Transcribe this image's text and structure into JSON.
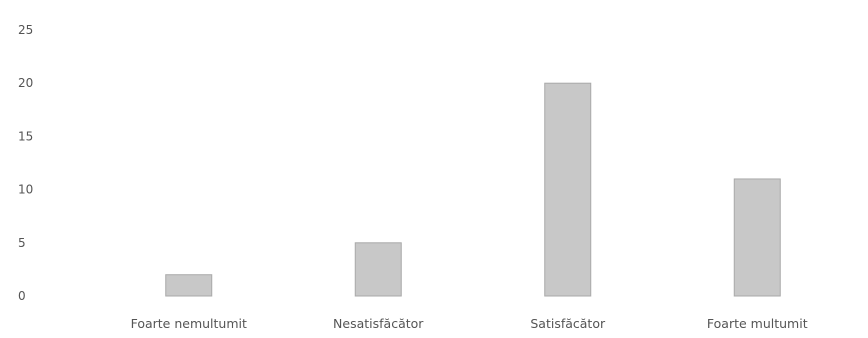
{
  "chart_data": {
    "type": "bar",
    "title": "",
    "xlabel": "",
    "ylabel": "",
    "categories": [
      "Foarte nemultumit",
      "Nesatisfăcător",
      "Satisfăcător",
      "Foarte multumit"
    ],
    "values": [
      2,
      5,
      20,
      11
    ],
    "ylim": [
      0,
      25
    ],
    "yticks": [
      "0",
      "5",
      "10",
      "15",
      "20",
      "25"
    ],
    "grid": false,
    "legend": "none",
    "bar_color": "#c8c8c8",
    "bar_edge_color": "#a9a9a9"
  }
}
